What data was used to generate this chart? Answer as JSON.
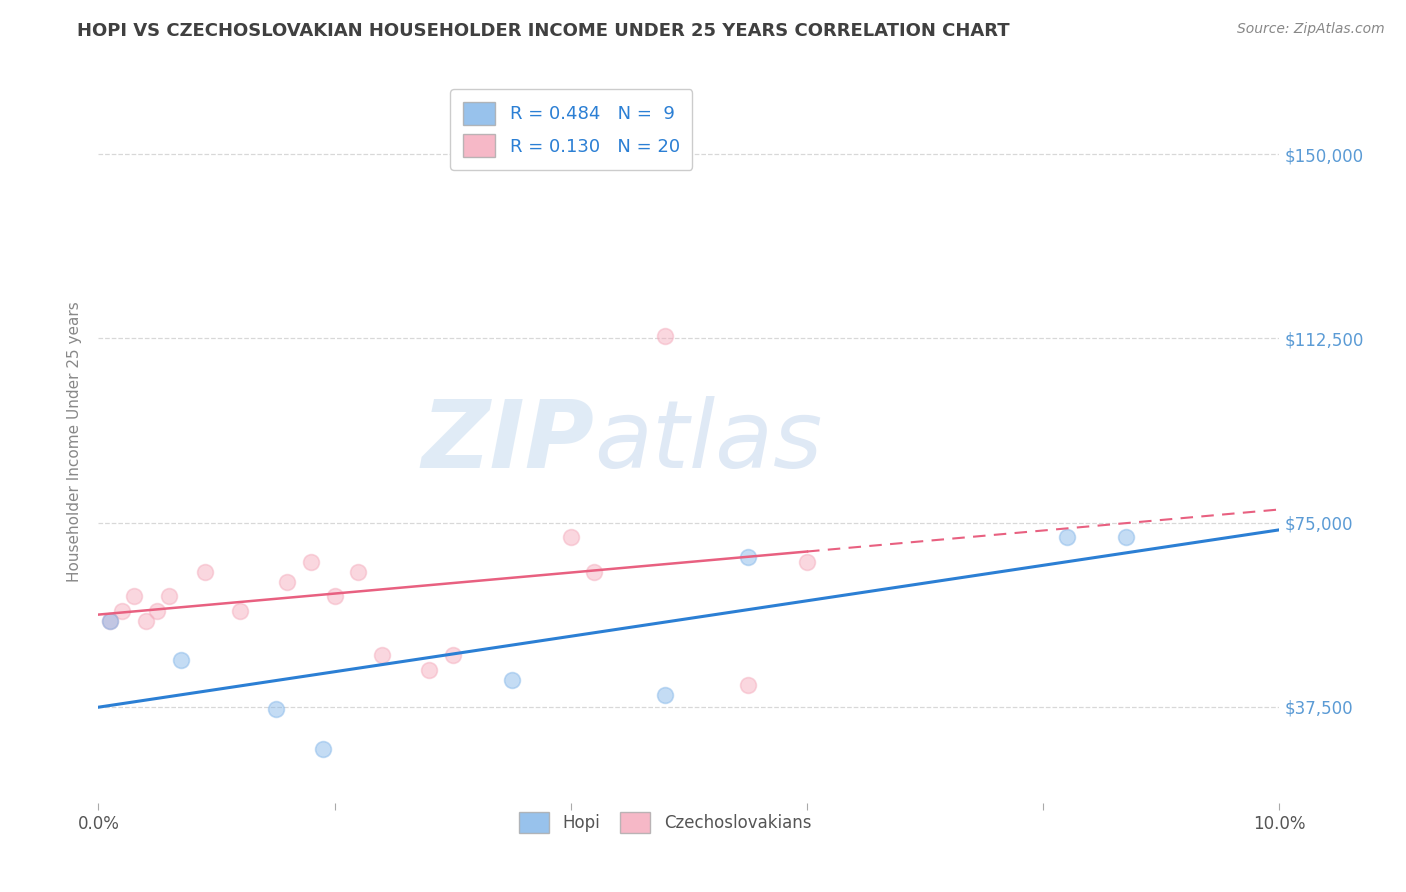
{
  "title": "HOPI VS CZECHOSLOVAKIAN HOUSEHOLDER INCOME UNDER 25 YEARS CORRELATION CHART",
  "source": "Source: ZipAtlas.com",
  "ylabel": "Householder Income Under 25 years",
  "xlim": [
    0.0,
    0.1
  ],
  "ylim": [
    18000,
    165000
  ],
  "yticks": [
    37500,
    75000,
    112500,
    150000
  ],
  "ytick_labels": [
    "$37,500",
    "$75,000",
    "$112,500",
    "$150,000"
  ],
  "xticks": [
    0.0,
    0.02,
    0.04,
    0.06,
    0.08,
    0.1
  ],
  "xtick_labels": [
    "0.0%",
    "",
    "",
    "",
    "",
    "10.0%"
  ],
  "hopi_color": "#7EB3E8",
  "czech_color": "#F4A7B9",
  "hopi_line_color": "#2B7FD4",
  "czech_line_color": "#E86080",
  "hopi_R": 0.484,
  "hopi_N": 9,
  "czech_R": 0.13,
  "czech_N": 20,
  "legend_label_hopi": "Hopi",
  "legend_label_czech": "Czechoslovakians",
  "watermark_zip": "ZIP",
  "watermark_atlas": "atlas",
  "hopi_x": [
    0.001,
    0.007,
    0.015,
    0.019,
    0.035,
    0.048,
    0.055,
    0.082,
    0.087
  ],
  "hopi_y": [
    55000,
    47000,
    37000,
    29000,
    43000,
    40000,
    68000,
    72000,
    72000
  ],
  "czech_x": [
    0.001,
    0.002,
    0.003,
    0.004,
    0.005,
    0.006,
    0.009,
    0.012,
    0.016,
    0.018,
    0.02,
    0.022,
    0.024,
    0.028,
    0.03,
    0.04,
    0.042,
    0.048,
    0.055,
    0.06
  ],
  "czech_y": [
    55000,
    57000,
    60000,
    55000,
    57000,
    60000,
    65000,
    57000,
    63000,
    67000,
    60000,
    65000,
    48000,
    45000,
    48000,
    72000,
    65000,
    113000,
    42000,
    67000
  ],
  "background_color": "#ffffff",
  "grid_color": "#d8d8d8",
  "title_color": "#404040",
  "axis_label_color": "#888888",
  "tick_color_right": "#5B9BD5",
  "marker_size": 130,
  "marker_alpha": 0.45,
  "title_fontsize": 13,
  "source_fontsize": 10
}
